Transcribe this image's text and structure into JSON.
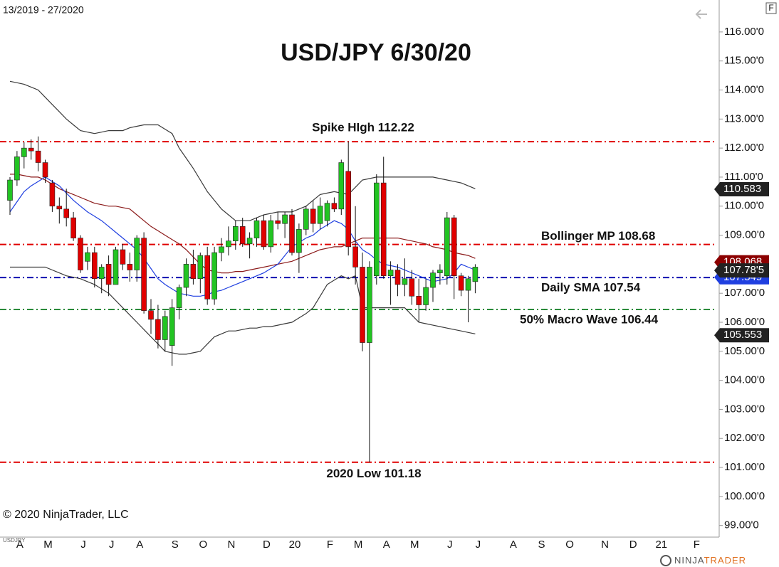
{
  "chart_data": {
    "type": "candlestick",
    "title": "USD/JPY 6/30/20",
    "date_range": "13/2019 - 27/2020",
    "toolbar_button": "F",
    "copyright": "© 2020 NinjaTrader, LLC",
    "brand": [
      "NINJA",
      "TRADER"
    ],
    "ylim": [
      98.6,
      117.1
    ],
    "yticks": [
      {
        "value": 99,
        "label": "99.00'0"
      },
      {
        "value": 100,
        "label": "100.00'0"
      },
      {
        "value": 101,
        "label": "101.00'0"
      },
      {
        "value": 102,
        "label": "102.00'0"
      },
      {
        "value": 103,
        "label": "103.00'0"
      },
      {
        "value": 104,
        "label": "104.00'0"
      },
      {
        "value": 105,
        "label": "105.00'0"
      },
      {
        "value": 106,
        "label": "106.00'0"
      },
      {
        "value": 107,
        "label": "107.00'0"
      },
      {
        "value": 108,
        "label": "108.00'0"
      },
      {
        "value": 109,
        "label": "109.00'0"
      },
      {
        "value": 110,
        "label": "110.00'0"
      },
      {
        "value": 111,
        "label": "111.00'0"
      },
      {
        "value": 112,
        "label": "112.00'0"
      },
      {
        "value": 113,
        "label": "113.00'0"
      },
      {
        "value": 114,
        "label": "114.00'0"
      },
      {
        "value": 115,
        "label": "115.00'0"
      },
      {
        "value": 116,
        "label": "116.00'0"
      }
    ],
    "categories": [
      null,
      "A",
      null,
      null,
      null,
      "M",
      null,
      null,
      null,
      null,
      "J",
      null,
      null,
      null,
      "J",
      null,
      null,
      null,
      "A",
      null,
      null,
      null,
      null,
      "S",
      null,
      null,
      null,
      "O",
      null,
      null,
      null,
      "N",
      null,
      null,
      null,
      null,
      "D",
      null,
      null,
      null,
      "20",
      null,
      null,
      null,
      null,
      "F",
      null,
      null,
      null,
      "M",
      null,
      null,
      null,
      "A",
      null,
      null,
      null,
      "M",
      null,
      null,
      null,
      null,
      "J",
      null,
      null,
      null,
      "J",
      null,
      null,
      null,
      null,
      "A",
      null,
      null,
      null,
      "S",
      null,
      null,
      null,
      "O",
      null,
      null,
      null,
      null,
      "N",
      null,
      null,
      null,
      "D",
      null,
      null,
      null,
      "21",
      null,
      null,
      null,
      null,
      "F",
      null,
      null
    ],
    "series": [
      {
        "name": "USDJPY",
        "up_color": "#22c422",
        "down_color": "#e00000",
        "open": [
          110.2,
          110.9,
          111.7,
          112.0,
          111.9,
          111.5,
          110.8,
          110.0,
          109.9,
          109.6,
          108.9,
          108.1,
          108.4,
          107.5,
          108.0,
          107.3,
          108.5,
          108.0,
          107.8,
          108.9,
          106.4,
          106.1,
          105.4,
          105.2,
          106.5,
          107.2,
          108.0,
          107.5,
          108.3,
          106.8,
          108.4,
          108.6,
          108.8,
          109.3,
          108.7,
          108.9,
          109.5,
          108.6,
          109.5,
          109.4,
          109.7,
          108.4,
          109.2,
          109.9,
          109.4,
          109.5,
          110.1,
          109.9,
          111.2,
          108.6,
          107.9,
          105.3,
          107.6,
          110.8,
          107.6,
          107.8,
          107.3,
          107.5,
          106.9,
          106.6,
          107.2,
          107.7,
          107.6,
          109.6,
          107.6,
          107.1,
          107.4,
          null,
          null,
          null,
          null,
          null,
          null,
          null,
          null,
          null,
          null,
          null,
          null,
          null,
          null,
          null,
          null,
          null,
          null,
          null,
          null,
          null,
          null,
          null,
          null,
          null,
          null,
          null,
          null,
          null,
          null,
          null,
          null
        ],
        "high": [
          111.0,
          111.9,
          112.2,
          112.3,
          112.4,
          111.6,
          110.9,
          110.3,
          110.6,
          109.8,
          109.0,
          108.6,
          108.6,
          108.0,
          108.3,
          108.6,
          108.7,
          108.4,
          109.0,
          109.1,
          106.8,
          106.6,
          106.4,
          106.8,
          107.3,
          108.2,
          108.5,
          108.4,
          108.6,
          108.6,
          108.9,
          109.3,
          109.5,
          109.6,
          109.1,
          109.6,
          109.7,
          109.7,
          109.8,
          109.8,
          109.9,
          109.4,
          110.0,
          110.2,
          110.3,
          110.2,
          110.3,
          111.6,
          112.22,
          110.0,
          108.4,
          108.1,
          111.1,
          111.7,
          108.1,
          108.0,
          108.2,
          107.8,
          107.5,
          107.5,
          107.8,
          108.0,
          109.8,
          109.7,
          107.7,
          107.6,
          108.0,
          null,
          null,
          null,
          null,
          null,
          null,
          null,
          null,
          null,
          null,
          null,
          null,
          null,
          null,
          null,
          null,
          null,
          null,
          null,
          null,
          null,
          null,
          null,
          null,
          null,
          null,
          null,
          null,
          null,
          null,
          null,
          null
        ],
        "low": [
          109.7,
          110.7,
          111.3,
          111.6,
          111.2,
          110.8,
          109.8,
          109.4,
          109.3,
          108.8,
          107.7,
          107.8,
          107.2,
          107.0,
          106.9,
          107.3,
          107.8,
          107.4,
          107.4,
          106.3,
          105.6,
          105.1,
          105.0,
          104.5,
          106.1,
          106.9,
          107.3,
          107.0,
          106.6,
          106.6,
          108.1,
          108.3,
          108.5,
          108.6,
          108.2,
          108.6,
          108.5,
          108.4,
          109.2,
          108.9,
          108.3,
          107.7,
          109.0,
          109.1,
          109.2,
          109.3,
          109.8,
          109.7,
          108.3,
          107.3,
          105.0,
          101.18,
          107.3,
          107.5,
          106.6,
          106.9,
          106.9,
          106.6,
          106.0,
          106.4,
          106.7,
          107.3,
          107.3,
          106.8,
          106.9,
          106.0,
          107.0,
          null,
          null,
          null,
          null,
          null,
          null,
          null,
          null,
          null,
          null,
          null,
          null,
          null,
          null,
          null,
          null,
          null,
          null,
          null,
          null,
          null,
          null,
          null,
          null,
          null,
          null,
          null,
          null,
          null,
          null,
          null,
          null
        ],
        "close": [
          110.9,
          111.7,
          112.0,
          111.9,
          111.5,
          111.0,
          110.0,
          109.9,
          109.6,
          108.9,
          107.8,
          108.4,
          107.5,
          107.9,
          107.3,
          108.5,
          108.0,
          107.8,
          108.9,
          106.4,
          106.1,
          105.4,
          106.2,
          106.5,
          107.2,
          108.0,
          107.5,
          108.3,
          106.8,
          108.4,
          108.6,
          108.8,
          109.3,
          108.7,
          108.9,
          109.5,
          108.6,
          109.5,
          109.4,
          109.7,
          108.4,
          109.2,
          109.9,
          109.4,
          110.0,
          110.1,
          109.9,
          111.5,
          108.6,
          107.9,
          105.3,
          107.9,
          110.8,
          107.6,
          107.8,
          107.3,
          107.5,
          106.9,
          106.6,
          107.2,
          107.7,
          107.8,
          109.6,
          107.6,
          107.1,
          107.5,
          107.9,
          null,
          null,
          null,
          null,
          null,
          null,
          null,
          null,
          null,
          null,
          null,
          null,
          null,
          null,
          null,
          null,
          null,
          null,
          null,
          null,
          null,
          null,
          null,
          null,
          null,
          null,
          null,
          null,
          null,
          null,
          null,
          null
        ]
      }
    ],
    "indicators": [
      {
        "color": "#3a3a3a",
        "values": [
          114.3,
          114.25,
          114.2,
          114.1,
          114.0,
          113.75,
          113.5,
          113.25,
          113.0,
          112.8,
          112.6,
          112.55,
          112.5,
          112.55,
          112.6,
          112.6,
          112.6,
          112.7,
          112.75,
          112.8,
          112.8,
          112.8,
          112.65,
          112.5,
          112.0,
          111.65,
          111.3,
          110.9,
          110.5,
          110.2,
          109.9,
          109.7,
          109.5,
          109.5,
          109.5,
          109.6,
          109.7,
          109.75,
          109.8,
          109.8,
          109.8,
          109.9,
          110.0,
          110.2,
          110.4,
          110.45,
          110.5,
          110.45,
          110.4,
          110.65,
          110.9,
          110.95,
          111.0,
          111.0,
          111.0,
          111.0,
          111.0,
          111.0,
          111.0,
          111.0,
          111.0,
          110.95,
          110.9,
          110.85,
          110.8,
          110.7,
          110.6,
          null,
          null,
          null,
          null,
          null,
          null,
          null,
          null,
          null,
          null,
          null,
          null,
          null,
          null,
          null,
          null,
          null,
          null,
          null,
          null,
          null,
          null,
          null,
          null,
          null,
          null,
          null,
          null,
          null,
          null,
          null,
          null
        ]
      },
      {
        "color": "#3a3a3a",
        "values": [
          107.9,
          107.9,
          107.9,
          107.9,
          107.9,
          107.9,
          107.8,
          107.7,
          107.6,
          107.55,
          107.5,
          107.4,
          107.3,
          107.15,
          107.0,
          106.75,
          106.5,
          106.25,
          106.0,
          105.75,
          105.5,
          105.25,
          105.0,
          104.95,
          104.9,
          104.9,
          104.95,
          105.0,
          105.25,
          105.5,
          105.6,
          105.7,
          105.7,
          105.75,
          105.8,
          105.8,
          105.85,
          105.85,
          105.9,
          105.95,
          106.0,
          106.15,
          106.3,
          106.5,
          106.9,
          107.3,
          107.45,
          107.6,
          107.5,
          107.6,
          106.5,
          106.5,
          106.5,
          106.5,
          106.5,
          106.5,
          106.5,
          106.25,
          106.0,
          105.95,
          105.9,
          105.85,
          105.8,
          105.75,
          105.7,
          105.65,
          105.6,
          null,
          null,
          null,
          null,
          null,
          null,
          null,
          null,
          null,
          null,
          null,
          null,
          null,
          null,
          null,
          null,
          null,
          null,
          null,
          null,
          null,
          null,
          null,
          null,
          null,
          null,
          null,
          null,
          null,
          null,
          null,
          null
        ]
      },
      {
        "color": "#8b1a1a",
        "values": [
          111.1,
          111.1,
          111.05,
          111.0,
          111.0,
          110.9,
          110.75,
          110.6,
          110.5,
          110.4,
          110.3,
          110.2,
          110.1,
          110.05,
          110.0,
          110.0,
          109.95,
          109.9,
          109.7,
          109.5,
          109.3,
          109.15,
          109.0,
          108.85,
          108.7,
          108.5,
          108.25,
          108.0,
          107.8,
          107.75,
          107.7,
          107.7,
          107.75,
          107.75,
          107.8,
          107.85,
          107.9,
          107.95,
          108.0,
          108.05,
          108.1,
          108.2,
          108.3,
          108.4,
          108.5,
          108.55,
          108.6,
          108.6,
          108.7,
          108.8,
          108.9,
          108.9,
          108.9,
          108.9,
          108.9,
          108.9,
          108.85,
          108.8,
          108.75,
          108.7,
          108.6,
          108.55,
          108.5,
          108.4,
          108.35,
          108.3,
          108.2,
          null,
          null,
          null,
          null,
          null,
          null,
          null,
          null,
          null,
          null,
          null,
          null,
          null,
          null,
          null,
          null,
          null,
          null,
          null,
          null,
          null,
          null,
          null,
          null,
          null,
          null,
          null,
          null,
          null,
          null,
          null,
          null
        ]
      },
      {
        "color": "#1f3fe0",
        "values": [
          109.8,
          110.15,
          110.5,
          110.7,
          110.85,
          111.0,
          110.85,
          110.7,
          110.45,
          110.2,
          110.0,
          109.8,
          109.65,
          109.5,
          109.3,
          109.1,
          108.9,
          108.7,
          108.5,
          108.2,
          107.85,
          107.5,
          107.3,
          107.15,
          107.0,
          106.95,
          106.9,
          106.9,
          106.95,
          107.05,
          107.1,
          107.2,
          107.3,
          107.4,
          107.5,
          107.6,
          107.7,
          107.85,
          108.0,
          108.3,
          108.6,
          108.75,
          108.9,
          109.0,
          109.2,
          109.35,
          109.5,
          109.4,
          109.2,
          108.8,
          108.5,
          108.35,
          108.15,
          108.0,
          107.95,
          107.9,
          107.8,
          107.7,
          107.6,
          107.5,
          107.4,
          107.45,
          107.5,
          107.7,
          108.0,
          107.9,
          107.8,
          null,
          null,
          null,
          null,
          null,
          null,
          null,
          null,
          null,
          null,
          null,
          null,
          null,
          null,
          null,
          null,
          null,
          null,
          null,
          null,
          null,
          null,
          null,
          null,
          null,
          null,
          null,
          null,
          null,
          null,
          null,
          null
        ]
      }
    ],
    "reference_lines": [
      {
        "value": 112.22,
        "label": "Spike HIgh 112.22",
        "color": "#e00000"
      },
      {
        "value": 108.68,
        "label": "Bollinger MP 108.68",
        "color": "#e00000"
      },
      {
        "value": 107.54,
        "label": "Daily SMA 107.54",
        "color": "#1010b0"
      },
      {
        "value": 106.44,
        "label": "50% Macro Wave 106.44",
        "color": "#2a8a3a"
      },
      {
        "value": 101.18,
        "label": "2020 Low 101.18",
        "color": "#e00000"
      }
    ],
    "price_markers": [
      {
        "value": 110.583,
        "color": "#222222"
      },
      {
        "value": 108.068,
        "color": "#8b0000"
      },
      {
        "value": 107.549,
        "color": "#1f3fe0"
      },
      {
        "value": {
          "value": 107.785,
          "label": "107.78'5"
        },
        "color": "#222222"
      },
      {
        "value": 105.553,
        "color": "#222222"
      }
    ]
  }
}
